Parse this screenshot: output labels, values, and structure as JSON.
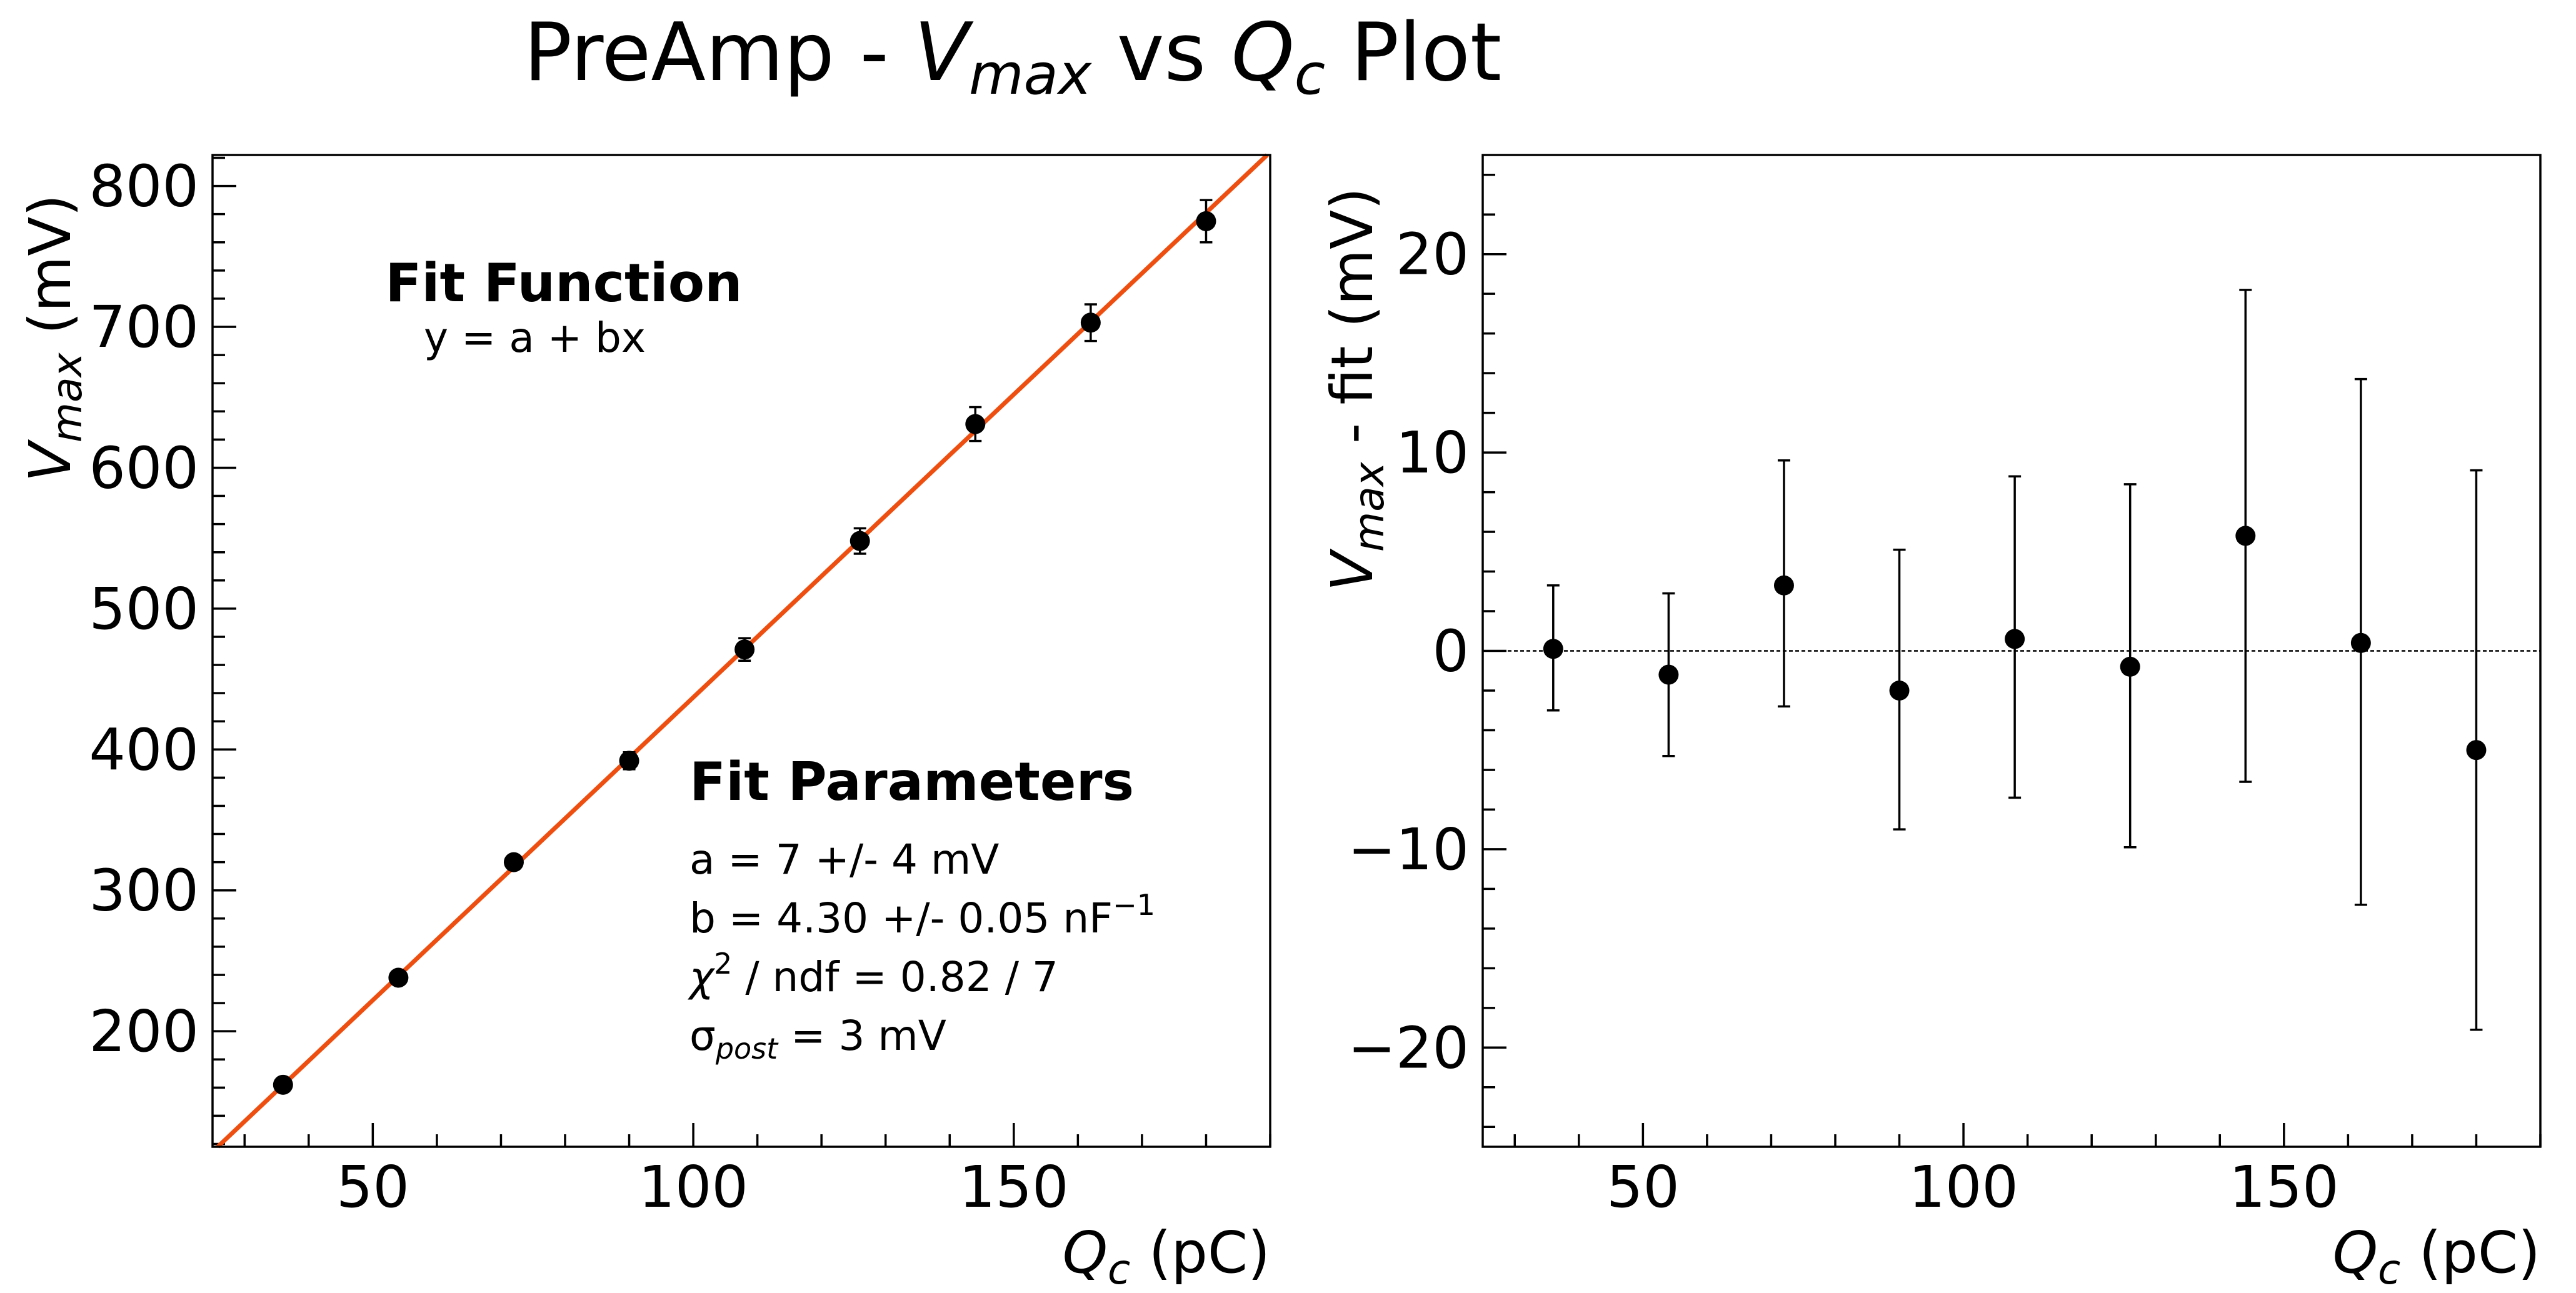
{
  "figure": {
    "title_prefix": "PreAmp - ",
    "title_var": "V",
    "title_var_sub": "max",
    "title_mid": " vs ",
    "title_var2": "Q",
    "title_var2_sub": "c",
    "title_suffix": " Plot"
  },
  "colors": {
    "fit_line": "#ee4f10",
    "points": "#000000",
    "zero_line": "#000000"
  },
  "left_panel": {
    "xlabel_var": "Q",
    "xlabel_sub": "c",
    "xlabel_unit": " (pC)",
    "ylabel_var": "V",
    "ylabel_sub": "max",
    "ylabel_unit": " (mV)",
    "fit_function_title": "Fit Function",
    "fit_function_eq": "y = a + bx",
    "fit_params_title": "Fit Parameters",
    "param_a": "a = 7 +/- 4 mV",
    "param_b_main": "b = 4.30 +/- 0.05 nF",
    "param_b_sup": "−1",
    "param_chi_main": "χ",
    "param_chi_sup": "2",
    "param_chi_rest": " / ndf = 0.82 / 7",
    "param_sigma_main": "σ",
    "param_sigma_sub": "post",
    "param_sigma_rest": " = 3 mV"
  },
  "right_panel": {
    "xlabel_var": "Q",
    "xlabel_sub": "c",
    "xlabel_unit": " (pC)",
    "ylabel_var": "V",
    "ylabel_sub": "max",
    "ylabel_rest": " - fit (mV)"
  },
  "chart_data": [
    {
      "type": "scatter",
      "name": "left",
      "x": [
        36,
        54,
        72,
        90,
        108,
        126,
        144,
        162,
        180
      ],
      "y": [
        162,
        238,
        320,
        392,
        471,
        548,
        631,
        703,
        775
      ],
      "yerr": [
        3,
        3,
        4,
        6,
        8,
        9,
        12,
        13,
        15
      ],
      "fit": {
        "a": 7,
        "b": 4.3
      },
      "xlim": [
        25,
        190
      ],
      "ylim": [
        118,
        822
      ],
      "xticks": [
        50,
        100,
        150
      ],
      "yticks": [
        200,
        300,
        400,
        500,
        600,
        700,
        800
      ],
      "xlabel": "Qc (pC)",
      "ylabel": "Vmax (mV)"
    },
    {
      "type": "scatter",
      "name": "right",
      "x": [
        36,
        54,
        72,
        90,
        108,
        126,
        144,
        162,
        180
      ],
      "y": [
        0.1,
        -1.2,
        3.3,
        -2.0,
        0.6,
        -0.8,
        5.8,
        0.4,
        -5.0
      ],
      "yerr_low": [
        3.1,
        4.1,
        6.1,
        7.0,
        8.0,
        9.1,
        12.4,
        13.2,
        14.1
      ],
      "yerr_high": [
        3.2,
        4.1,
        6.3,
        7.1,
        8.2,
        9.2,
        12.4,
        13.3,
        14.1
      ],
      "zero_line": true,
      "xlim": [
        25,
        190
      ],
      "ylim": [
        -25,
        25
      ],
      "xticks": [
        50,
        100,
        150
      ],
      "yticks": [
        -20,
        -10,
        0,
        10,
        20
      ],
      "ytick_labels": [
        "−20",
        "−10",
        "0",
        "10",
        "20"
      ],
      "xlabel": "Qc (pC)",
      "ylabel": "Vmax - fit (mV)"
    }
  ]
}
